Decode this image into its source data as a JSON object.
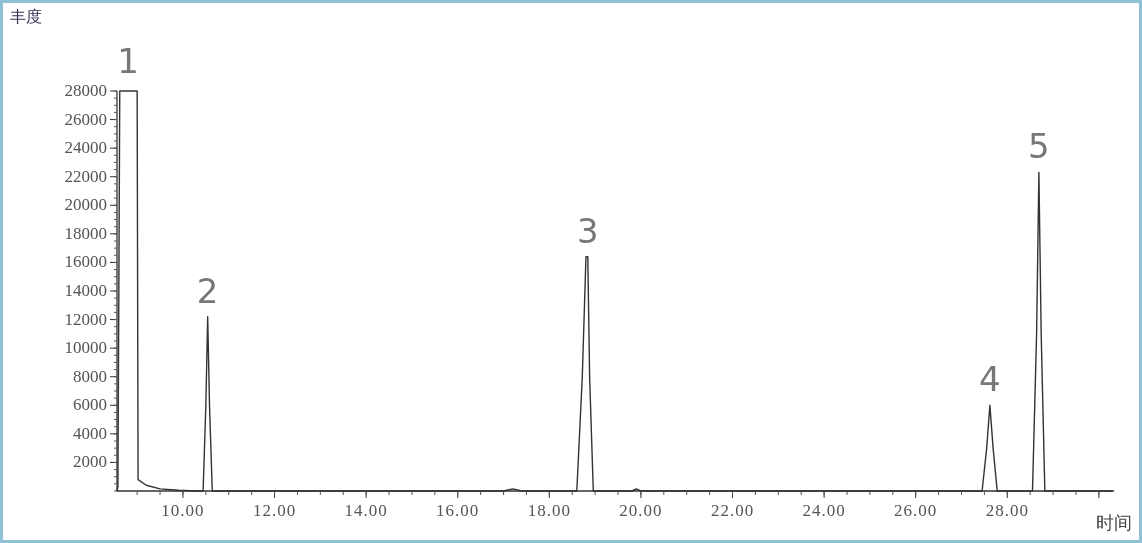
{
  "chart_data": {
    "type": "line",
    "xlabel": "时间",
    "ylabel": "丰度",
    "xlim": [
      8.56,
      30.33
    ],
    "ylim": [
      0,
      28000
    ],
    "xticks": [
      {
        "value": 10,
        "label": "10.00"
      },
      {
        "value": 12,
        "label": "12.00"
      },
      {
        "value": 14,
        "label": "14.00"
      },
      {
        "value": 16,
        "label": "16.00"
      },
      {
        "value": 18,
        "label": "18.00"
      },
      {
        "value": 20,
        "label": "20.00"
      },
      {
        "value": 22,
        "label": "22.00"
      },
      {
        "value": 24,
        "label": "24.00"
      },
      {
        "value": 26,
        "label": "26.00"
      },
      {
        "value": 28,
        "label": "28.00"
      },
      {
        "value": 30,
        "label": null
      }
    ],
    "yticks": [
      2000,
      4000,
      6000,
      8000,
      10000,
      12000,
      14000,
      16000,
      18000,
      20000,
      22000,
      24000,
      26000,
      28000
    ],
    "series": [
      {
        "color": "#333333",
        "line_style": "solid",
        "marker": "none",
        "x": [
          8.56,
          8.58,
          8.6,
          8.62,
          9.0,
          9.02,
          9.2,
          9.5,
          9.9,
          10.3,
          10.44,
          10.5,
          10.54,
          10.58,
          10.64,
          17.0,
          17.2,
          17.4,
          18.6,
          18.72,
          18.8,
          18.84,
          18.88,
          18.96,
          19.8,
          19.9,
          20.0,
          27.45,
          27.55,
          27.62,
          27.69,
          27.78,
          28.55,
          28.64,
          28.69,
          28.74,
          28.82,
          30.3
        ],
        "values": [
          0,
          300,
          14000,
          28000,
          28000,
          800,
          400,
          150,
          50,
          0,
          0,
          6000,
          12200,
          6000,
          0,
          0,
          150,
          0,
          0,
          8000,
          16400,
          16400,
          8000,
          0,
          0,
          150,
          0,
          0,
          3000,
          6000,
          3000,
          0,
          0,
          11000,
          22300,
          11000,
          0,
          0
        ]
      }
    ],
    "annotations": [
      {
        "text": "1",
        "x": 8.8,
        "y": 28000
      },
      {
        "text": "2",
        "x": 10.54,
        "y": 12200
      },
      {
        "text": "3",
        "x": 18.84,
        "y": 16400
      },
      {
        "text": "4",
        "x": 27.62,
        "y": 6000
      },
      {
        "text": "5",
        "x": 28.69,
        "y": 22300
      }
    ]
  }
}
